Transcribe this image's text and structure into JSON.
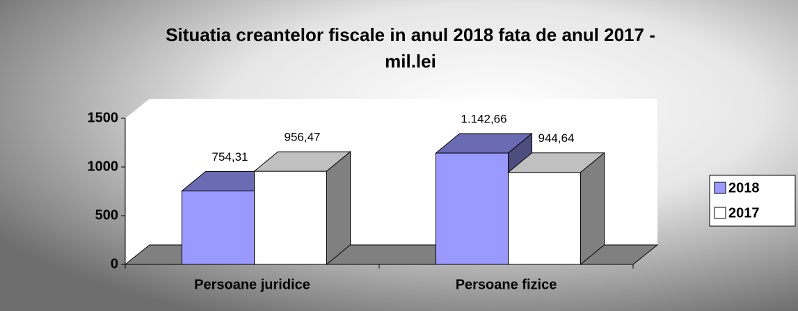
{
  "chart_data": {
    "type": "bar3d",
    "title": [
      "Situatia creantelor fiscale in anul 2018 fata de anul 2017 -",
      "mil.lei"
    ],
    "categories": [
      "Persoane juridice",
      "Persoane fizice"
    ],
    "series": [
      {
        "name": "2018",
        "color": "#9999ff",
        "values": [
          754.31,
          1142.66
        ],
        "value_labels": [
          "754,31",
          "1.142,66"
        ]
      },
      {
        "name": "2017",
        "color": "#ffffff",
        "values": [
          956.47,
          944.64
        ],
        "value_labels": [
          "956,47",
          "944,64"
        ]
      }
    ],
    "ylim": [
      0,
      1500
    ],
    "yticks": [
      0,
      500,
      1000,
      1500
    ],
    "legend": "right"
  }
}
